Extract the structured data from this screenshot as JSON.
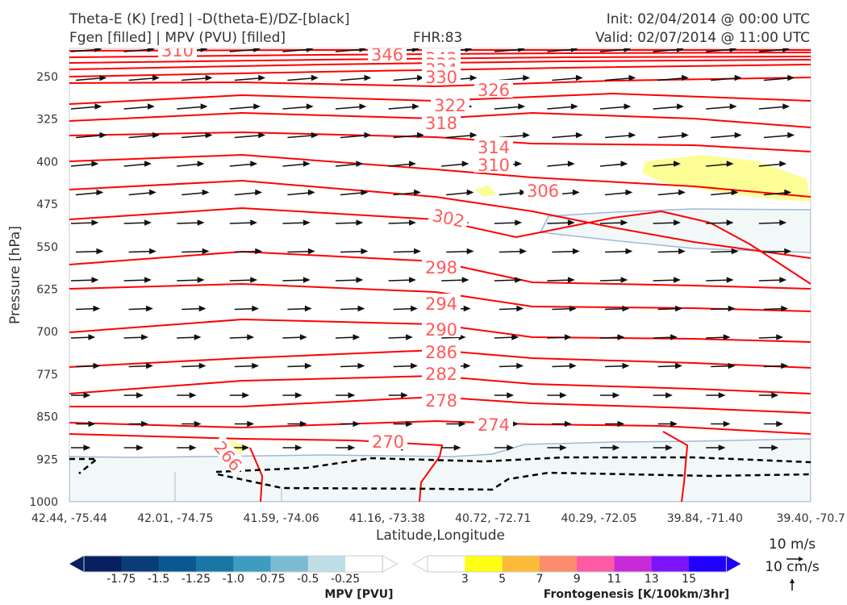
{
  "header": {
    "title_left_1": "Theta-E (K) [red] | -D(theta-E)/DZ-[black]",
    "title_left_2": "Fgen [filled] | MPV (PVU) [filled]",
    "fhr": "FHR:83",
    "init": "Init: 02/04/2014 @ 00:00 UTC",
    "valid": "Valid: 02/07/2014 @ 11:00 UTC"
  },
  "chart_data": {
    "type": "cross-section",
    "xlabel": "Latitude,Longitude",
    "ylabel": "Pressure [hPa]",
    "ylim": [
      1000,
      175
    ],
    "x_ticks": [
      "42.44, -75.44",
      "42.01, -74.75",
      "41.59, -74.06",
      "41.16, -73.38",
      "40.72, -72.71",
      "40.29, -72.05",
      "39.84, -71.40",
      "39.40, -70.7"
    ],
    "y_ticks": [
      250,
      325,
      400,
      475,
      550,
      625,
      700,
      775,
      850,
      925,
      1000
    ],
    "theta_e_contour_labels": [
      "310",
      "346",
      "342",
      "338",
      "334",
      "330",
      "326",
      "322",
      "318",
      "314",
      "310",
      "306",
      "302",
      "298",
      "294",
      "290",
      "286",
      "282",
      "278",
      "274",
      "270",
      "266"
    ],
    "theta_e_color": "#ff0000",
    "wind_vector_color": "#111111",
    "mpv_fill_color": "#f2f8f8",
    "fgen_fill_color": "#fdfd96",
    "quiver_key": {
      "horizontal": "10 m/s",
      "vertical": "10 cm/s"
    }
  },
  "colorbars": {
    "mpv": {
      "title": "MPV [PVU]",
      "ticks": [
        "-1.75",
        "-1.5",
        "-1.25",
        "-1.0",
        "-0.75",
        "-0.5",
        "-0.25"
      ],
      "colors": [
        "#08205f",
        "#0a3c78",
        "#0b578f",
        "#1877a6",
        "#3d9cbf",
        "#7cbbd4",
        "#bfdde7",
        "#ffffff"
      ]
    },
    "fgen": {
      "title": "Frontogenesis [K/100km/3hr]",
      "ticks": [
        "3",
        "5",
        "7",
        "9",
        "11",
        "13",
        "15"
      ],
      "colors": [
        "#ffffff",
        "#ffff14",
        "#fcbc3a",
        "#fc8c6c",
        "#fc5aa4",
        "#c82ad8",
        "#7b14f8",
        "#2000fc"
      ]
    }
  }
}
